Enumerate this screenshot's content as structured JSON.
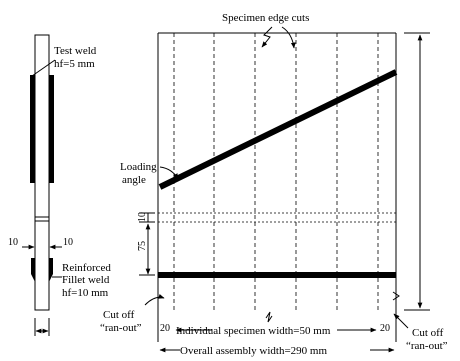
{
  "labels": {
    "test_weld": "Test weld",
    "hf_test": "hf=5 mm",
    "specimen_edge_cuts": "Specimen edge cuts",
    "loading": "Loading",
    "angle": "angle",
    "dim_10_left": "10",
    "dim_10_right": "10",
    "dim_10_vertical": "10",
    "dim_75": "75",
    "reinforced": "Reinforced",
    "fillet_weld": "Fillet weld",
    "hf_fillet": "hf=10 mm",
    "cut_off_left": "Cut off",
    "ran_out_left": "“ran-out”",
    "cut_off_right": "Cut off",
    "ran_out_right": "“ran-out”",
    "dim_20_left": "20",
    "dim_20_right": "20",
    "individual_width": "Individual specimen width=50 mm",
    "overall_width": "Overall assembly width=290 mm"
  }
}
